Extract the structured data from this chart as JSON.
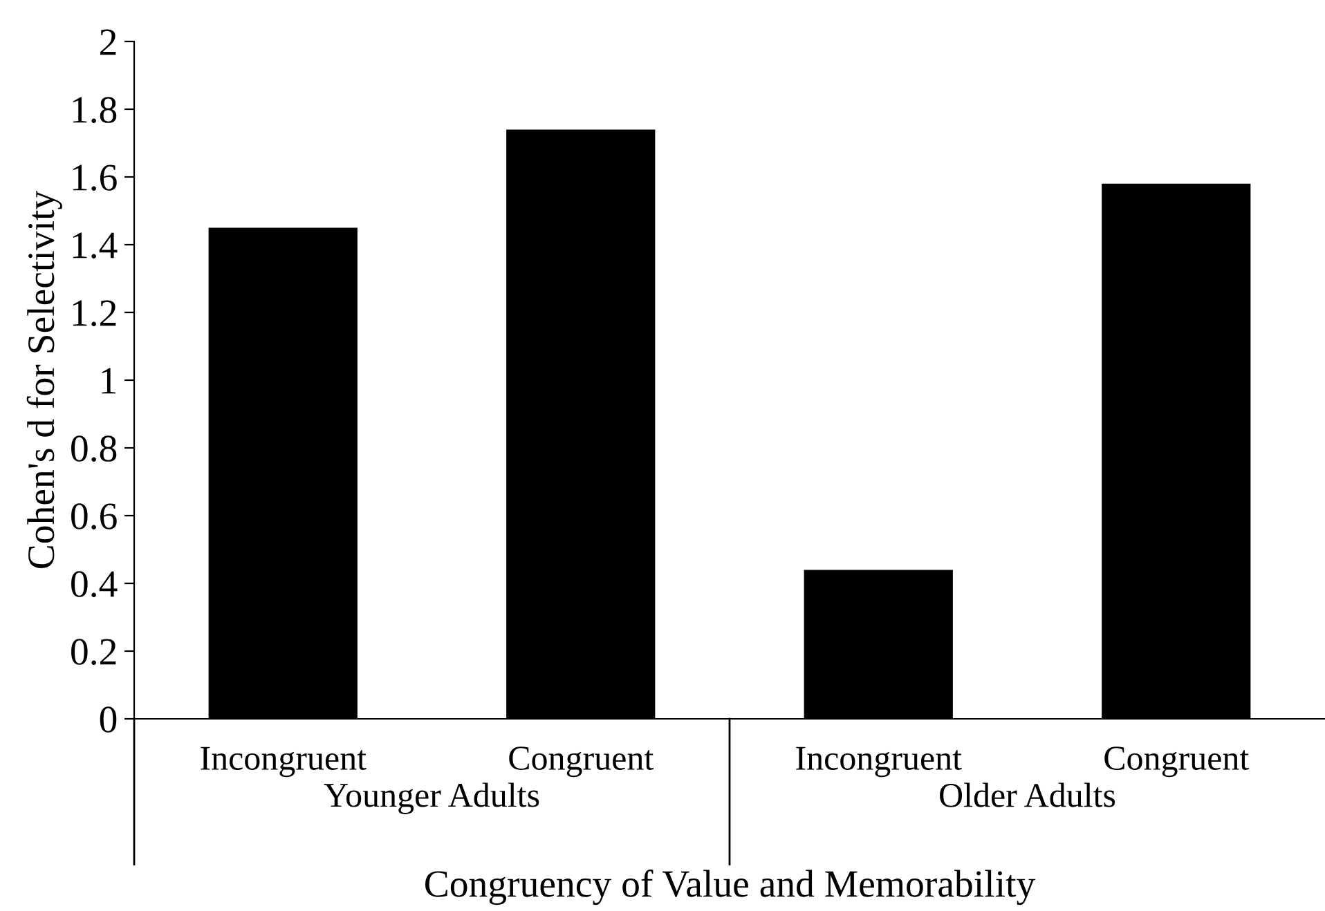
{
  "chart_data": {
    "type": "bar",
    "categories": [
      "Incongruent",
      "Congruent",
      "Incongruent",
      "Congruent"
    ],
    "values": [
      1.45,
      1.74,
      0.44,
      1.58
    ],
    "color": "#000000",
    "ylim": [
      0,
      2
    ],
    "yticks": [
      0,
      0.2,
      0.4,
      0.6,
      0.8,
      1,
      1.2,
      1.4,
      1.6,
      1.8,
      2
    ],
    "xlabel": "Congruency of Value and Memorability",
    "ylabel": "Cohen's d for Selectivity",
    "annotations": [
      "Younger Adults",
      "Older Adults"
    ],
    "grid": false,
    "legend": false
  }
}
